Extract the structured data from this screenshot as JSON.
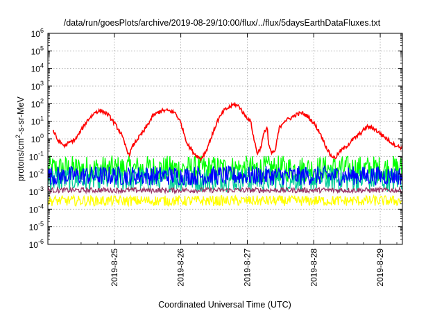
{
  "chart_data": {
    "type": "line",
    "title": "/data/run/goesPlots/archive/2019-08-29/10:00/flux/../flux/5daysEarthDataFluxes.txt",
    "xlabel": "Coordinated Universal Time (UTC)",
    "ylabel_parts": {
      "pre": "protons/cm",
      "sup": "2",
      "post": "-s-sr-MeV"
    },
    "log_y": true,
    "grid": true,
    "ylim_exponent": [
      -6,
      6
    ],
    "xlim_days": [
      "2019-08-24 02:00",
      "2019-08-29 10:00"
    ],
    "y_tick_labels": [
      {
        "base": "10",
        "exp": "-6"
      },
      {
        "base": "10",
        "exp": "-5"
      },
      {
        "base": "10",
        "exp": "-4"
      },
      {
        "base": "10",
        "exp": "-3"
      },
      {
        "base": "10",
        "exp": "-2"
      },
      {
        "base": "10",
        "exp": "-1"
      },
      {
        "base": "10",
        "exp": "0"
      },
      {
        "base": "10",
        "exp": "1"
      },
      {
        "base": "10",
        "exp": "2"
      },
      {
        "base": "10",
        "exp": "3"
      },
      {
        "base": "10",
        "exp": "4"
      },
      {
        "base": "10",
        "exp": "5"
      },
      {
        "base": "10",
        "exp": "6"
      }
    ],
    "x_ticks": [
      {
        "label": "2019-8-25",
        "day": 1.0
      },
      {
        "label": "2019-8-26",
        "day": 2.0
      },
      {
        "label": "2019-8-27",
        "day": 3.0
      },
      {
        "label": "2019-8-28",
        "day": 4.0
      },
      {
        "label": "2019-8-29",
        "day": 5.0
      }
    ],
    "series": [
      {
        "color": "#ff0000",
        "points": [
          [
            0.08,
            3.0
          ],
          [
            0.15,
            0.8
          ],
          [
            0.25,
            0.4
          ],
          [
            0.35,
            0.7
          ],
          [
            0.42,
            1.0
          ],
          [
            0.5,
            3.0
          ],
          [
            0.6,
            12
          ],
          [
            0.72,
            35
          ],
          [
            0.8,
            40
          ],
          [
            0.9,
            25
          ],
          [
            1.0,
            8
          ],
          [
            1.1,
            2.0
          ],
          [
            1.18,
            0.3
          ],
          [
            1.22,
            0.12
          ],
          [
            1.28,
            0.4
          ],
          [
            1.35,
            1.0
          ],
          [
            1.45,
            3.0
          ],
          [
            1.58,
            20
          ],
          [
            1.7,
            40
          ],
          [
            1.82,
            40
          ],
          [
            1.92,
            30
          ],
          [
            2.0,
            8
          ],
          [
            2.05,
            2.0
          ],
          [
            2.1,
            0.5
          ],
          [
            2.2,
            0.15
          ],
          [
            2.3,
            0.07
          ],
          [
            2.38,
            0.2
          ],
          [
            2.45,
            1.0
          ],
          [
            2.55,
            10
          ],
          [
            2.65,
            40
          ],
          [
            2.72,
            60
          ],
          [
            2.8,
            90
          ],
          [
            2.88,
            70
          ],
          [
            2.95,
            25
          ],
          [
            3.05,
            10
          ],
          [
            3.1,
            1.0
          ],
          [
            3.15,
            0.15
          ],
          [
            3.2,
            0.3
          ],
          [
            3.25,
            2.0
          ],
          [
            3.3,
            5.0
          ],
          [
            3.32,
            0.5
          ],
          [
            3.36,
            0.15
          ],
          [
            3.42,
            0.2
          ],
          [
            3.48,
            4.0
          ],
          [
            3.55,
            10
          ],
          [
            3.65,
            15
          ],
          [
            3.75,
            25
          ],
          [
            3.82,
            30
          ],
          [
            3.9,
            20
          ],
          [
            4.0,
            8
          ],
          [
            4.1,
            2.0
          ],
          [
            4.18,
            0.4
          ],
          [
            4.25,
            0.12
          ],
          [
            4.32,
            0.08
          ],
          [
            4.4,
            0.2
          ],
          [
            4.5,
            0.4
          ],
          [
            4.6,
            1.0
          ],
          [
            4.7,
            2.0
          ],
          [
            4.8,
            5.0
          ],
          [
            4.9,
            4.0
          ],
          [
            5.0,
            2.0
          ],
          [
            5.1,
            1.0
          ],
          [
            5.2,
            0.5
          ],
          [
            5.28,
            0.35
          ],
          [
            5.35,
            0.3
          ],
          [
            5.38,
            0.4
          ]
        ]
      },
      {
        "color": "#00ff00",
        "level": 0.02,
        "spread": 0.75
      },
      {
        "color": "#00cc99",
        "level": 0.005,
        "spread": 0.7
      },
      {
        "color": "#0000ff",
        "level": 0.008,
        "spread": 0.55
      },
      {
        "color": "#993366",
        "level": 0.0012,
        "spread": 0.15
      },
      {
        "color": "#ffff00",
        "level": 0.0003,
        "spread": 0.3
      }
    ]
  }
}
